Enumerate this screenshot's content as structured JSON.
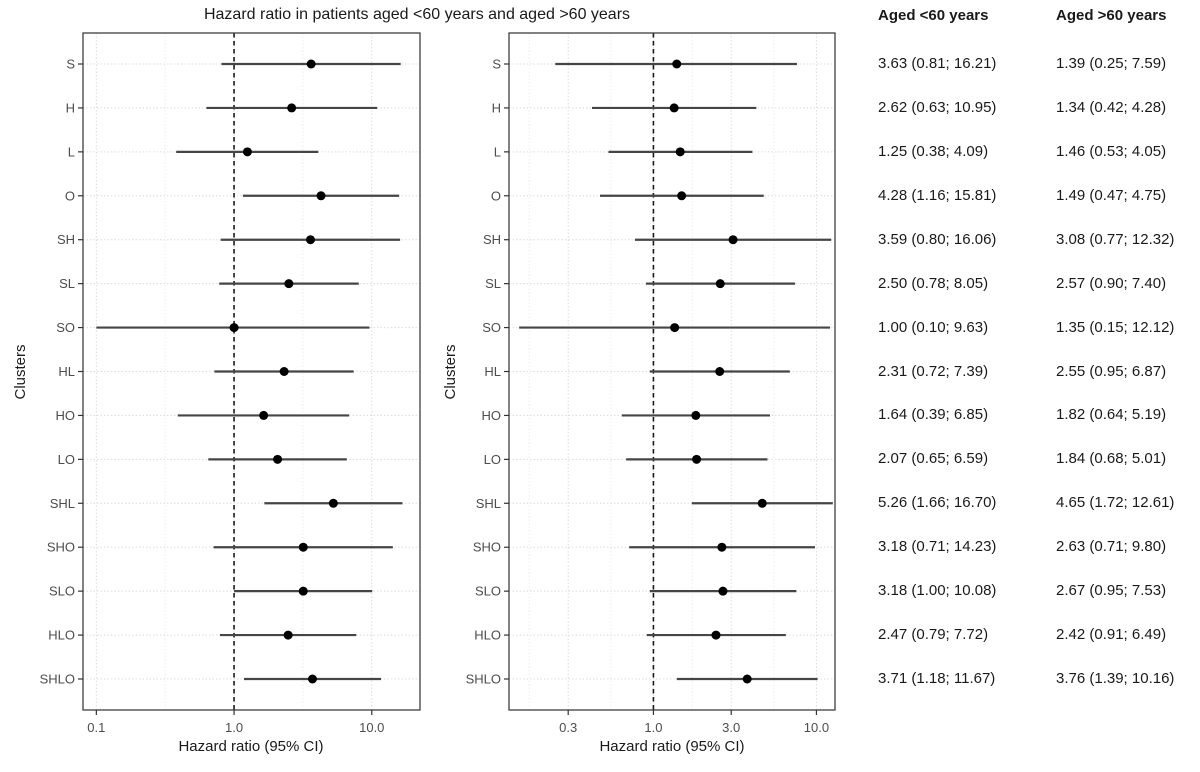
{
  "title": "Hazard ratio in patients aged <60 years and aged >60 years",
  "colors": {
    "point": "#000000",
    "ci_line": "#454545",
    "refline": "#1a1a1a",
    "grid_major": "#dcdcdc",
    "grid_minor": "#ececec",
    "grid_row": "#dcdcdc",
    "panel_border": "#3f3f3f",
    "tick": "#333333",
    "tick_text": "#4d4d4d",
    "text": "#1a1a1a"
  },
  "chart_data": [
    {
      "type": "forest",
      "name": "Aged <60 years",
      "xlabel": "Hazard ratio (95% CI)",
      "ylabel": "Clusters",
      "xscale": "log",
      "xlim": [
        0.08,
        22.4
      ],
      "xticks": [
        0.1,
        1.0,
        10.0
      ],
      "xtick_labels": [
        "0.1",
        "1.0",
        "10.0"
      ],
      "xticks_minor": [
        0.316,
        3.162
      ],
      "refline": 1.0,
      "refline_style": "dashed",
      "grid": true,
      "categories": [
        "S",
        "H",
        "L",
        "O",
        "SH",
        "SL",
        "SO",
        "HL",
        "HO",
        "LO",
        "SHL",
        "SHO",
        "SLO",
        "HLO",
        "SHLO"
      ],
      "hr": [
        3.63,
        2.62,
        1.25,
        4.28,
        3.59,
        2.5,
        1.0,
        2.31,
        1.64,
        2.07,
        5.26,
        3.18,
        3.18,
        2.47,
        3.71
      ],
      "ci_lower": [
        0.81,
        0.63,
        0.38,
        1.16,
        0.8,
        0.78,
        0.1,
        0.72,
        0.39,
        0.65,
        1.66,
        0.71,
        1.0,
        0.79,
        1.18
      ],
      "ci_upper": [
        16.21,
        10.95,
        4.09,
        15.81,
        16.06,
        8.05,
        9.63,
        7.39,
        6.85,
        6.59,
        16.7,
        14.23,
        10.08,
        7.72,
        11.67
      ]
    },
    {
      "type": "forest",
      "name": "Aged >60 years",
      "xlabel": "Hazard ratio (95% CI)",
      "ylabel": "Clusters",
      "xscale": "log",
      "xlim": [
        0.13,
        13.0
      ],
      "xticks": [
        0.3,
        1.0,
        3.0,
        10.0
      ],
      "xtick_labels": [
        "0.3",
        "1.0",
        "3.0",
        "10.0"
      ],
      "xticks_minor": [
        0.173,
        0.548,
        1.732,
        5.477
      ],
      "refline": 1.0,
      "refline_style": "dashed",
      "grid": true,
      "categories": [
        "S",
        "H",
        "L",
        "O",
        "SH",
        "SL",
        "SO",
        "HL",
        "HO",
        "LO",
        "SHL",
        "SHO",
        "SLO",
        "HLO",
        "SHLO"
      ],
      "hr": [
        1.39,
        1.34,
        1.46,
        1.49,
        3.08,
        2.57,
        1.35,
        2.55,
        1.82,
        1.84,
        4.65,
        2.63,
        2.67,
        2.42,
        3.76
      ],
      "ci_lower": [
        0.25,
        0.42,
        0.53,
        0.47,
        0.77,
        0.9,
        0.15,
        0.95,
        0.64,
        0.68,
        1.72,
        0.71,
        0.95,
        0.91,
        1.39
      ],
      "ci_upper": [
        7.59,
        4.28,
        4.05,
        4.75,
        12.32,
        7.4,
        12.12,
        6.87,
        5.19,
        5.01,
        12.61,
        9.8,
        7.53,
        6.49,
        10.16
      ]
    }
  ],
  "table": {
    "columns": [
      "Aged <60 years",
      "Aged >60 years"
    ],
    "rows": [
      [
        "3.63 (0.81; 16.21)",
        "1.39 (0.25; 7.59)"
      ],
      [
        "2.62 (0.63; 10.95)",
        "1.34 (0.42; 4.28)"
      ],
      [
        "1.25 (0.38; 4.09)",
        "1.46 (0.53; 4.05)"
      ],
      [
        "4.28 (1.16; 15.81)",
        "1.49 (0.47; 4.75)"
      ],
      [
        "3.59 (0.80; 16.06)",
        "3.08 (0.77; 12.32)"
      ],
      [
        "2.50 (0.78; 8.05)",
        "2.57 (0.90; 7.40)"
      ],
      [
        "1.00 (0.10; 9.63)",
        "1.35 (0.15; 12.12)"
      ],
      [
        "2.31 (0.72; 7.39)",
        "2.55 (0.95; 6.87)"
      ],
      [
        "1.64 (0.39; 6.85)",
        "1.82 (0.64; 5.19)"
      ],
      [
        "2.07 (0.65; 6.59)",
        "1.84 (0.68; 5.01)"
      ],
      [
        "5.26 (1.66; 16.70)",
        "4.65 (1.72; 12.61)"
      ],
      [
        "3.18 (0.71; 14.23)",
        "2.63 (0.71; 9.80)"
      ],
      [
        "3.18 (1.00; 10.08)",
        "2.67 (0.95; 7.53)"
      ],
      [
        "2.47 (0.79; 7.72)",
        "2.42 (0.91; 6.49)"
      ],
      [
        "3.71 (1.18; 11.67)",
        "3.76 (1.39; 10.16)"
      ]
    ]
  }
}
